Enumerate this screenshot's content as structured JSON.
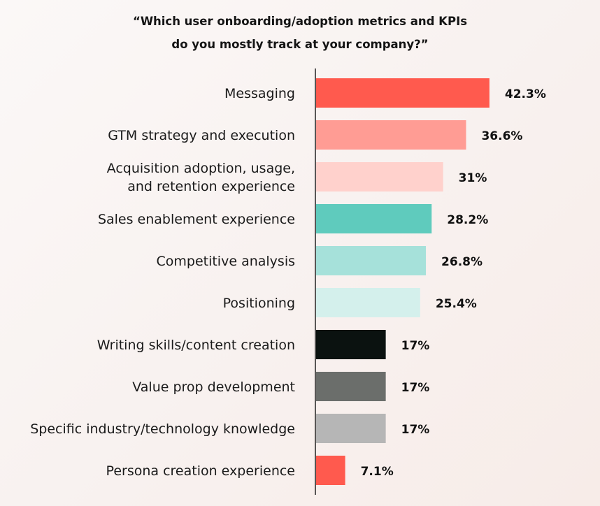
{
  "chart_data": {
    "type": "bar",
    "orientation": "horizontal",
    "title_lines": [
      "“Which user onboarding/adoption metrics and KPIs",
      "do you mostly track at your company?”"
    ],
    "categories": [
      [
        "Messaging"
      ],
      [
        "GTM strategy and execution"
      ],
      [
        "Acquisition adoption, usage,",
        "and retention experience"
      ],
      [
        "Sales enablement experience"
      ],
      [
        "Competitive analysis"
      ],
      [
        "Positioning"
      ],
      [
        "Writing skills/content creation"
      ],
      [
        "Value prop development"
      ],
      [
        "Specific industry/technology knowledge"
      ],
      [
        "Persona creation experience"
      ]
    ],
    "values": [
      42.3,
      36.6,
      31,
      28.2,
      26.8,
      25.4,
      17,
      17,
      17,
      7.1
    ],
    "value_labels": [
      "42.3%",
      "36.6%",
      "31%",
      "28.2%",
      "26.8%",
      "25.4%",
      "17%",
      "17%",
      "17%",
      "7.1%"
    ],
    "colors": [
      "#ff5a4e",
      "#ff9c94",
      "#ffd1cc",
      "#5fcbbd",
      "#a6e1da",
      "#d4f0ec",
      "#0b1210",
      "#6b6e6b",
      "#b6b6b6",
      "#ff5a4e"
    ],
    "xlabel": "",
    "ylabel": "",
    "grid": false,
    "legend": "none"
  }
}
